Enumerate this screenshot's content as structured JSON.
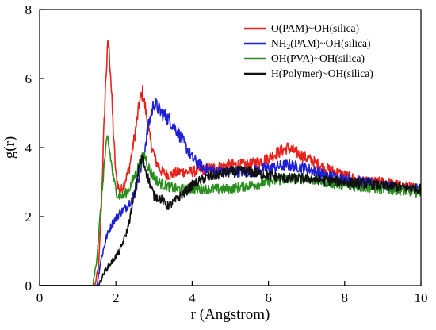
{
  "chart_data": {
    "type": "line",
    "title": "",
    "xlabel": "r (Angstrom)",
    "ylabel": "g(r)",
    "xlim": [
      0,
      10
    ],
    "ylim": [
      0,
      8
    ],
    "x_ticks": [
      "0",
      "2",
      "4",
      "6",
      "8",
      "10"
    ],
    "y_ticks": [
      "0",
      "2",
      "4",
      "6",
      "8"
    ],
    "grid": false,
    "legend_position": "top-right",
    "series": [
      {
        "name": "O(PAM)~OH(silica)",
        "color": "#e8231b",
        "points": [
          [
            0,
            0
          ],
          [
            1.45,
            0
          ],
          [
            1.55,
            0.6
          ],
          [
            1.62,
            2.3
          ],
          [
            1.68,
            4.4
          ],
          [
            1.74,
            6.1
          ],
          [
            1.8,
            7.1
          ],
          [
            1.86,
            6.2
          ],
          [
            1.93,
            4.5
          ],
          [
            2.0,
            3.2
          ],
          [
            2.1,
            2.7
          ],
          [
            2.2,
            2.9
          ],
          [
            2.35,
            3.4
          ],
          [
            2.5,
            4.4
          ],
          [
            2.62,
            5.3
          ],
          [
            2.7,
            5.6
          ],
          [
            2.78,
            5.1
          ],
          [
            2.9,
            4.2
          ],
          [
            3.05,
            3.6
          ],
          [
            3.2,
            3.3
          ],
          [
            3.4,
            3.2
          ],
          [
            3.7,
            3.3
          ],
          [
            4.0,
            3.3
          ],
          [
            4.5,
            3.4
          ],
          [
            5.0,
            3.5
          ],
          [
            5.5,
            3.5
          ],
          [
            6.0,
            3.7
          ],
          [
            6.5,
            4.0
          ],
          [
            7.0,
            3.7
          ],
          [
            7.5,
            3.4
          ],
          [
            8.0,
            3.2
          ],
          [
            8.5,
            3.0
          ],
          [
            9.0,
            3.0
          ],
          [
            9.5,
            2.9
          ],
          [
            10.0,
            2.8
          ]
        ]
      },
      {
        "name": "NH2(PAM)~OH(silica)",
        "name_prefix": "NH",
        "name_subscript": "2",
        "name_suffix": "(PAM)~OH(silica)",
        "color": "#1f1fd6",
        "points": [
          [
            0,
            0
          ],
          [
            1.5,
            0
          ],
          [
            1.6,
            0.7
          ],
          [
            1.75,
            1.4
          ],
          [
            1.9,
            1.8
          ],
          [
            2.1,
            2.1
          ],
          [
            2.3,
            2.3
          ],
          [
            2.5,
            2.7
          ],
          [
            2.7,
            3.6
          ],
          [
            2.85,
            4.6
          ],
          [
            3.0,
            5.3
          ],
          [
            3.2,
            5.0
          ],
          [
            3.4,
            4.8
          ],
          [
            3.6,
            4.5
          ],
          [
            3.8,
            4.1
          ],
          [
            4.0,
            3.7
          ],
          [
            4.3,
            3.4
          ],
          [
            4.7,
            3.3
          ],
          [
            5.0,
            3.3
          ],
          [
            5.5,
            3.3
          ],
          [
            6.0,
            3.4
          ],
          [
            6.5,
            3.5
          ],
          [
            7.0,
            3.4
          ],
          [
            7.5,
            3.2
          ],
          [
            8.0,
            3.1
          ],
          [
            8.5,
            3.0
          ],
          [
            9.0,
            2.9
          ],
          [
            9.5,
            2.8
          ],
          [
            10.0,
            2.8
          ]
        ]
      },
      {
        "name": "OH(PVA)~OH(silica)",
        "color": "#2a8f1e",
        "points": [
          [
            0,
            0
          ],
          [
            1.4,
            0
          ],
          [
            1.5,
            0.8
          ],
          [
            1.6,
            2.2
          ],
          [
            1.7,
            3.6
          ],
          [
            1.78,
            4.3
          ],
          [
            1.86,
            3.7
          ],
          [
            1.95,
            3.0
          ],
          [
            2.05,
            2.6
          ],
          [
            2.2,
            2.6
          ],
          [
            2.35,
            2.8
          ],
          [
            2.5,
            3.2
          ],
          [
            2.65,
            3.6
          ],
          [
            2.75,
            3.8
          ],
          [
            2.9,
            3.3
          ],
          [
            3.1,
            3.0
          ],
          [
            3.3,
            2.9
          ],
          [
            3.6,
            2.8
          ],
          [
            4.0,
            2.8
          ],
          [
            4.5,
            2.8
          ],
          [
            5.0,
            2.8
          ],
          [
            5.5,
            2.9
          ],
          [
            6.0,
            3.0
          ],
          [
            6.5,
            3.1
          ],
          [
            7.0,
            3.1
          ],
          [
            7.5,
            3.0
          ],
          [
            8.0,
            2.9
          ],
          [
            8.5,
            2.85
          ],
          [
            9.0,
            2.8
          ],
          [
            9.5,
            2.75
          ],
          [
            10.0,
            2.7
          ]
        ]
      },
      {
        "name": "H(Polymer)~OH(silica)",
        "color": "#111111",
        "points": [
          [
            0,
            0
          ],
          [
            1.55,
            0
          ],
          [
            1.7,
            0.4
          ],
          [
            1.9,
            0.7
          ],
          [
            2.1,
            1.0
          ],
          [
            2.3,
            1.6
          ],
          [
            2.45,
            2.4
          ],
          [
            2.6,
            3.4
          ],
          [
            2.7,
            3.7
          ],
          [
            2.82,
            3.2
          ],
          [
            3.0,
            2.6
          ],
          [
            3.2,
            2.5
          ],
          [
            3.35,
            2.3
          ],
          [
            3.5,
            2.4
          ],
          [
            3.7,
            2.6
          ],
          [
            4.0,
            2.9
          ],
          [
            4.3,
            3.1
          ],
          [
            4.6,
            3.2
          ],
          [
            5.0,
            3.3
          ],
          [
            5.5,
            3.3
          ],
          [
            6.0,
            3.2
          ],
          [
            6.5,
            3.1
          ],
          [
            7.0,
            3.1
          ],
          [
            7.5,
            3.05
          ],
          [
            8.0,
            3.0
          ],
          [
            8.5,
            2.95
          ],
          [
            9.0,
            2.9
          ],
          [
            9.5,
            2.85
          ],
          [
            10.0,
            2.8
          ]
        ]
      }
    ]
  }
}
